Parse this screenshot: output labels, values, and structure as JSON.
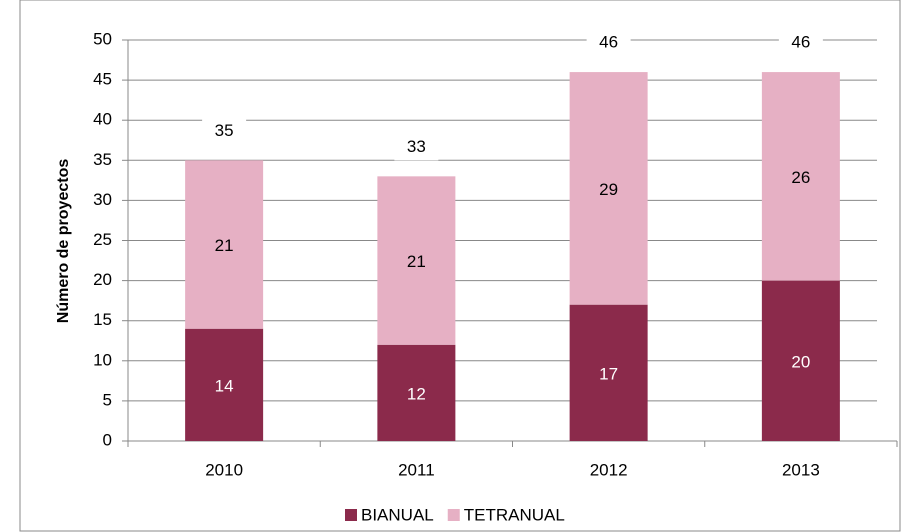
{
  "chart_data": {
    "type": "stacked_bar",
    "y_axis_label": "Número de proyectos",
    "categories": [
      "2010",
      "2011",
      "2012",
      "2013"
    ],
    "series": [
      {
        "name": "BIANUAL",
        "color": "#8b2a4b",
        "values": [
          14,
          12,
          17,
          20
        ]
      },
      {
        "name": "TETRANUAL",
        "color": "#e6b0c4",
        "values": [
          21,
          21,
          29,
          26
        ]
      }
    ],
    "totals": [
      35,
      33,
      46,
      46
    ],
    "ylim": [
      0,
      50
    ],
    "yticks": [
      0,
      5,
      10,
      15,
      20,
      25,
      30,
      35,
      40,
      45,
      50
    ],
    "grid": true,
    "legend": "bottom"
  }
}
